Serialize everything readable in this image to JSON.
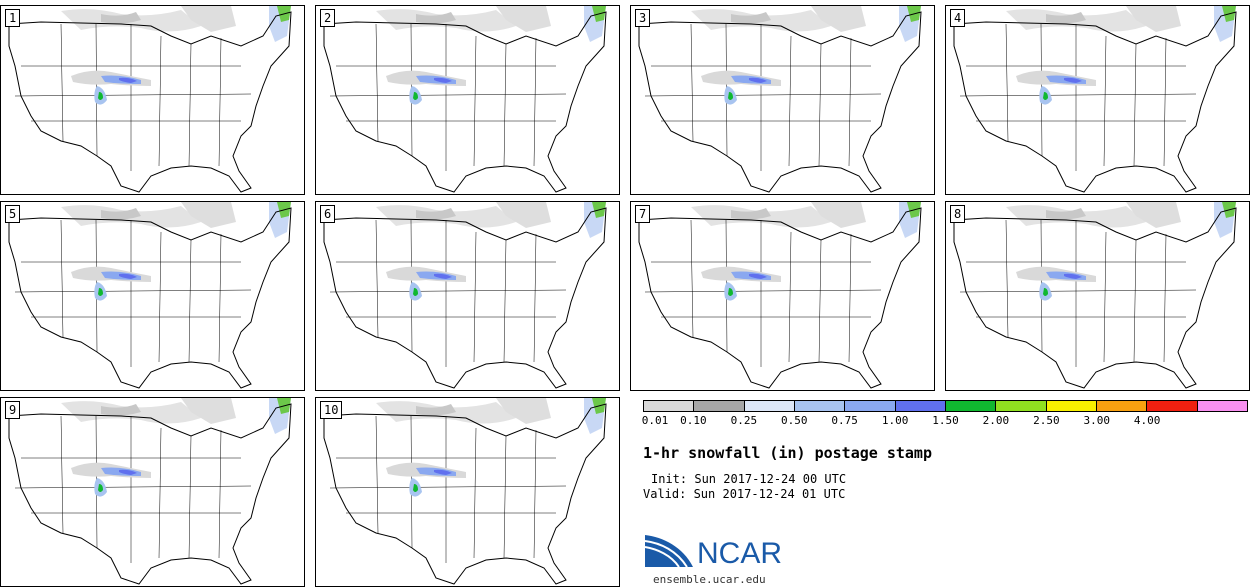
{
  "panels": [
    "1",
    "2",
    "3",
    "4",
    "5",
    "6",
    "7",
    "8",
    "9",
    "10"
  ],
  "colorbar": {
    "colors": [
      "#d9d9d9",
      "#a6a6a6",
      "#dde7f7",
      "#a8c4f0",
      "#8aa8f0",
      "#6070ee",
      "#10b830",
      "#90e020",
      "#f8f000",
      "#f8a010",
      "#f02010",
      "#f890f0"
    ],
    "ticks": [
      "0.01",
      "0.10",
      "0.25",
      "0.50",
      "0.75",
      "1.00",
      "1.50",
      "2.00",
      "2.50",
      "3.00",
      "4.00"
    ]
  },
  "title": "1-hr snowfall (in) postage stamp",
  "init": "Init: Sun 2017-12-24 00 UTC",
  "valid": "Valid: Sun 2017-12-24 01 UTC",
  "logo": {
    "text": "NCAR",
    "site": "ensemble.ucar.edu",
    "color": "#1a5aa8"
  }
}
